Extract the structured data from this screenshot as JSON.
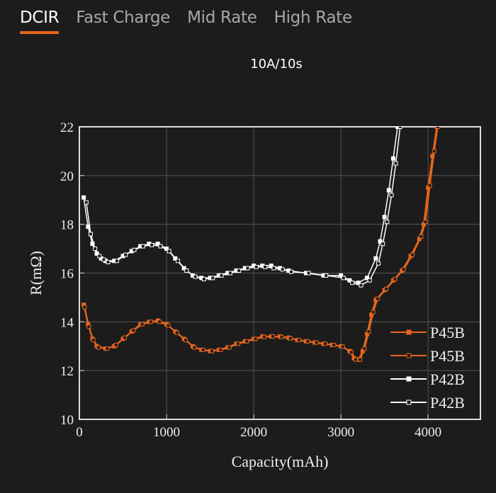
{
  "tabs": [
    {
      "label": "DCIR",
      "active": true
    },
    {
      "label": "Fast Charge"
    },
    {
      "label": "Mid Rate"
    },
    {
      "label": "High Rate"
    }
  ],
  "subtitle": "10A/10s",
  "colors": {
    "accent": "#e8651c",
    "white": "#ffffff"
  },
  "chart_data": {
    "type": "line",
    "title": "10A/10s",
    "xlabel": "Capacity(mAh)",
    "ylabel": "R(mΩ)",
    "xlim": [
      0,
      4600
    ],
    "ylim": [
      10,
      22
    ],
    "xticks": [
      0,
      1000,
      2000,
      3000,
      4000
    ],
    "yticks": [
      10,
      12,
      14,
      16,
      18,
      20,
      22
    ],
    "grid": true,
    "legend": "bottom-right",
    "series": [
      {
        "name": "P45B",
        "color": "#e8651c",
        "marker": "filled",
        "points": [
          [
            50,
            14.7
          ],
          [
            100,
            13.9
          ],
          [
            150,
            13.3
          ],
          [
            200,
            13.0
          ],
          [
            300,
            12.9
          ],
          [
            400,
            13.0
          ],
          [
            500,
            13.3
          ],
          [
            600,
            13.6
          ],
          [
            700,
            13.9
          ],
          [
            800,
            14.0
          ],
          [
            900,
            14.05
          ],
          [
            1000,
            13.9
          ],
          [
            1100,
            13.6
          ],
          [
            1200,
            13.3
          ],
          [
            1300,
            13.0
          ],
          [
            1400,
            12.85
          ],
          [
            1500,
            12.8
          ],
          [
            1600,
            12.85
          ],
          [
            1700,
            12.95
          ],
          [
            1800,
            13.1
          ],
          [
            1900,
            13.2
          ],
          [
            2000,
            13.3
          ],
          [
            2100,
            13.4
          ],
          [
            2200,
            13.4
          ],
          [
            2300,
            13.4
          ],
          [
            2400,
            13.35
          ],
          [
            2500,
            13.25
          ],
          [
            2600,
            13.2
          ],
          [
            2700,
            13.15
          ],
          [
            2800,
            13.1
          ],
          [
            2900,
            13.05
          ],
          [
            3000,
            13.0
          ],
          [
            3100,
            12.8
          ],
          [
            3150,
            12.5
          ],
          [
            3200,
            12.45
          ],
          [
            3250,
            12.8
          ],
          [
            3300,
            13.5
          ],
          [
            3350,
            14.3
          ],
          [
            3400,
            14.9
          ],
          [
            3500,
            15.3
          ],
          [
            3600,
            15.7
          ],
          [
            3700,
            16.1
          ],
          [
            3800,
            16.7
          ],
          [
            3900,
            17.4
          ],
          [
            3950,
            18.0
          ],
          [
            4000,
            19.5
          ],
          [
            4050,
            20.8
          ],
          [
            4100,
            22
          ]
        ]
      },
      {
        "name": "P45B",
        "color": "#e8651c",
        "marker": "open",
        "points": [
          [
            60,
            14.6
          ],
          [
            110,
            13.8
          ],
          [
            160,
            13.25
          ],
          [
            220,
            12.95
          ],
          [
            320,
            12.9
          ],
          [
            420,
            13.05
          ],
          [
            520,
            13.35
          ],
          [
            620,
            13.65
          ],
          [
            720,
            13.9
          ],
          [
            820,
            14.0
          ],
          [
            920,
            14.0
          ],
          [
            1020,
            13.85
          ],
          [
            1120,
            13.55
          ],
          [
            1220,
            13.25
          ],
          [
            1320,
            12.95
          ],
          [
            1420,
            12.85
          ],
          [
            1520,
            12.8
          ],
          [
            1620,
            12.85
          ],
          [
            1720,
            12.95
          ],
          [
            1820,
            13.1
          ],
          [
            1920,
            13.2
          ],
          [
            2020,
            13.3
          ],
          [
            2120,
            13.38
          ],
          [
            2220,
            13.4
          ],
          [
            2320,
            13.38
          ],
          [
            2420,
            13.32
          ],
          [
            2520,
            13.25
          ],
          [
            2620,
            13.2
          ],
          [
            2720,
            13.15
          ],
          [
            2820,
            13.1
          ],
          [
            2920,
            13.05
          ],
          [
            3020,
            12.98
          ],
          [
            3120,
            12.75
          ],
          [
            3170,
            12.45
          ],
          [
            3220,
            12.45
          ],
          [
            3270,
            12.9
          ],
          [
            3320,
            13.6
          ],
          [
            3370,
            14.4
          ],
          [
            3420,
            14.95
          ],
          [
            3520,
            15.35
          ],
          [
            3620,
            15.75
          ],
          [
            3720,
            16.15
          ],
          [
            3820,
            16.75
          ],
          [
            3920,
            17.5
          ],
          [
            3970,
            18.1
          ],
          [
            4020,
            19.6
          ],
          [
            4070,
            21
          ],
          [
            4110,
            22
          ]
        ]
      },
      {
        "name": "P42B",
        "color": "#ffffff",
        "marker": "filled",
        "points": [
          [
            50,
            19.1
          ],
          [
            100,
            17.9
          ],
          [
            150,
            17.2
          ],
          [
            200,
            16.8
          ],
          [
            250,
            16.6
          ],
          [
            300,
            16.5
          ],
          [
            400,
            16.5
          ],
          [
            500,
            16.7
          ],
          [
            600,
            16.9
          ],
          [
            700,
            17.1
          ],
          [
            800,
            17.2
          ],
          [
            900,
            17.2
          ],
          [
            1000,
            17.0
          ],
          [
            1100,
            16.6
          ],
          [
            1200,
            16.2
          ],
          [
            1300,
            15.9
          ],
          [
            1400,
            15.8
          ],
          [
            1500,
            15.8
          ],
          [
            1600,
            15.9
          ],
          [
            1700,
            16.0
          ],
          [
            1800,
            16.1
          ],
          [
            1900,
            16.2
          ],
          [
            2000,
            16.3
          ],
          [
            2100,
            16.3
          ],
          [
            2200,
            16.3
          ],
          [
            2300,
            16.2
          ],
          [
            2400,
            16.1
          ],
          [
            2600,
            16.0
          ],
          [
            2800,
            15.9
          ],
          [
            3000,
            15.9
          ],
          [
            3100,
            15.7
          ],
          [
            3200,
            15.6
          ],
          [
            3300,
            15.8
          ],
          [
            3400,
            16.6
          ],
          [
            3450,
            17.3
          ],
          [
            3500,
            18.3
          ],
          [
            3550,
            19.4
          ],
          [
            3600,
            20.7
          ],
          [
            3650,
            22
          ]
        ]
      },
      {
        "name": "P42B",
        "color": "#ffffff",
        "marker": "open",
        "points": [
          [
            80,
            18.9
          ],
          [
            130,
            17.6
          ],
          [
            180,
            17.0
          ],
          [
            230,
            16.7
          ],
          [
            280,
            16.55
          ],
          [
            330,
            16.45
          ],
          [
            430,
            16.5
          ],
          [
            530,
            16.75
          ],
          [
            630,
            16.95
          ],
          [
            730,
            17.1
          ],
          [
            830,
            17.15
          ],
          [
            930,
            17.1
          ],
          [
            1030,
            16.9
          ],
          [
            1130,
            16.5
          ],
          [
            1230,
            16.1
          ],
          [
            1330,
            15.85
          ],
          [
            1430,
            15.75
          ],
          [
            1530,
            15.8
          ],
          [
            1630,
            15.9
          ],
          [
            1730,
            16.0
          ],
          [
            1830,
            16.1
          ],
          [
            1930,
            16.2
          ],
          [
            2030,
            16.25
          ],
          [
            2130,
            16.25
          ],
          [
            2230,
            16.2
          ],
          [
            2330,
            16.15
          ],
          [
            2430,
            16.05
          ],
          [
            2630,
            16.0
          ],
          [
            2830,
            15.9
          ],
          [
            3030,
            15.8
          ],
          [
            3130,
            15.6
          ],
          [
            3230,
            15.5
          ],
          [
            3330,
            15.7
          ],
          [
            3430,
            16.4
          ],
          [
            3480,
            17.2
          ],
          [
            3530,
            18.1
          ],
          [
            3580,
            19.2
          ],
          [
            3630,
            20.5
          ],
          [
            3680,
            22
          ]
        ]
      }
    ]
  }
}
